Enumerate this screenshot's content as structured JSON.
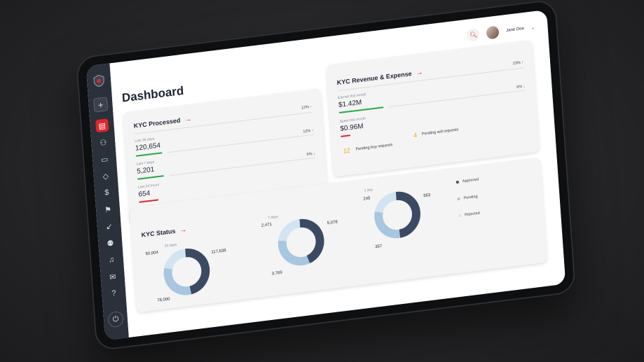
{
  "header": {
    "user_name": "Jane Doe",
    "page_title": "Dashboard"
  },
  "sidebar": {
    "items": [
      "plus-icon",
      "dashboard-icon",
      "users-icon",
      "calendar-icon",
      "tag-icon",
      "dollar-icon",
      "flag-icon",
      "arrow-down-left-icon",
      "group-icon",
      "bell-icon",
      "mail-icon",
      "help-icon"
    ],
    "power": "power-icon"
  },
  "kyc_processed": {
    "title": "KYC Processed",
    "top_pct": "12%",
    "rows": [
      {
        "label": "Last 30 days",
        "value": "120,654",
        "pct": "12%",
        "dir": "up",
        "fill": 0.28
      },
      {
        "label": "Last 7 days",
        "value": "5,201",
        "pct": "6%",
        "dir": "down",
        "fill": 0.28
      },
      {
        "label": "Last 24 hours",
        "value": "654",
        "pct": "",
        "dir": "",
        "fill": 0.22
      }
    ]
  },
  "kyc_revenue": {
    "title": "KYC Revenue & Expense",
    "top_pct": "23%",
    "earned_label": "Earned this month",
    "earned_value": "$1.42M",
    "earned_pct": "6%",
    "spent_label": "Spent this month",
    "spent_value": "$0.96M",
    "pending_buy_count": "12",
    "pending_buy_label": "Pending buy requests",
    "pending_sell_count": "4",
    "pending_sell_label": "Pending sell requests"
  },
  "kyc_status": {
    "title": "KYC Status",
    "legend": [
      {
        "name": "Approved",
        "color": "#3b4a63"
      },
      {
        "name": "Pending",
        "color": "#a8c6df"
      },
      {
        "name": "Rejected",
        "color": "#d2e4f1"
      }
    ],
    "charts": [
      {
        "period": "30 days",
        "approved": "117,638",
        "pending": "78,000",
        "rejected": "50,004",
        "values": [
          117638,
          78000,
          50004
        ]
      },
      {
        "period": "7 days",
        "approved": "5,078",
        "pending": "3,769",
        "rejected": "2,471",
        "values": [
          5078,
          3769,
          2471
        ]
      },
      {
        "period": "1 day",
        "approved": "583",
        "pending": "357",
        "rejected": "245",
        "values": [
          583,
          357,
          245
        ]
      }
    ]
  },
  "colors": {
    "accent": "#e0262b",
    "up": "#27a844",
    "pending_num": "#f2a900",
    "sidebar": "#2b313b"
  }
}
